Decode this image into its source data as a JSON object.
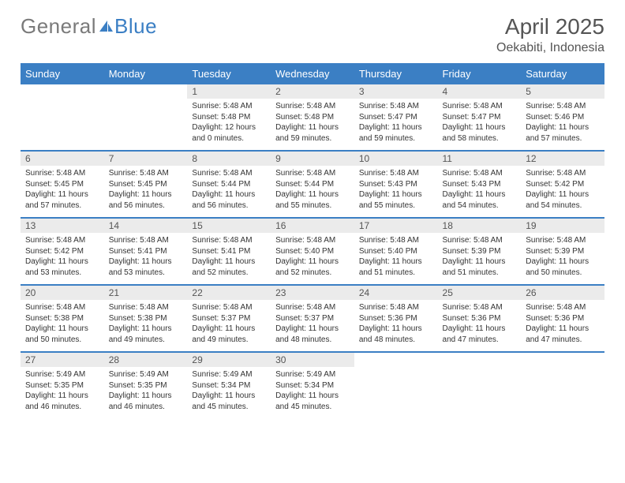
{
  "logo": {
    "text_gray": "General",
    "text_blue": "Blue"
  },
  "header": {
    "month_title": "April 2025",
    "location": "Oekabiti, Indonesia"
  },
  "colors": {
    "header_bg": "#3b7fc4",
    "header_text": "#ffffff",
    "daynum_bg": "#ebebeb",
    "row_border": "#3b7fc4",
    "body_text": "#333333",
    "title_text": "#555555",
    "logo_gray": "#7a7a7a",
    "logo_blue": "#3b7fc4"
  },
  "day_headers": [
    "Sunday",
    "Monday",
    "Tuesday",
    "Wednesday",
    "Thursday",
    "Friday",
    "Saturday"
  ],
  "weeks": [
    [
      {
        "empty": true
      },
      {
        "empty": true
      },
      {
        "n": "1",
        "sr": "Sunrise: 5:48 AM",
        "ss": "Sunset: 5:48 PM",
        "dl": "Daylight: 12 hours and 0 minutes."
      },
      {
        "n": "2",
        "sr": "Sunrise: 5:48 AM",
        "ss": "Sunset: 5:48 PM",
        "dl": "Daylight: 11 hours and 59 minutes."
      },
      {
        "n": "3",
        "sr": "Sunrise: 5:48 AM",
        "ss": "Sunset: 5:47 PM",
        "dl": "Daylight: 11 hours and 59 minutes."
      },
      {
        "n": "4",
        "sr": "Sunrise: 5:48 AM",
        "ss": "Sunset: 5:47 PM",
        "dl": "Daylight: 11 hours and 58 minutes."
      },
      {
        "n": "5",
        "sr": "Sunrise: 5:48 AM",
        "ss": "Sunset: 5:46 PM",
        "dl": "Daylight: 11 hours and 57 minutes."
      }
    ],
    [
      {
        "n": "6",
        "sr": "Sunrise: 5:48 AM",
        "ss": "Sunset: 5:45 PM",
        "dl": "Daylight: 11 hours and 57 minutes."
      },
      {
        "n": "7",
        "sr": "Sunrise: 5:48 AM",
        "ss": "Sunset: 5:45 PM",
        "dl": "Daylight: 11 hours and 56 minutes."
      },
      {
        "n": "8",
        "sr": "Sunrise: 5:48 AM",
        "ss": "Sunset: 5:44 PM",
        "dl": "Daylight: 11 hours and 56 minutes."
      },
      {
        "n": "9",
        "sr": "Sunrise: 5:48 AM",
        "ss": "Sunset: 5:44 PM",
        "dl": "Daylight: 11 hours and 55 minutes."
      },
      {
        "n": "10",
        "sr": "Sunrise: 5:48 AM",
        "ss": "Sunset: 5:43 PM",
        "dl": "Daylight: 11 hours and 55 minutes."
      },
      {
        "n": "11",
        "sr": "Sunrise: 5:48 AM",
        "ss": "Sunset: 5:43 PM",
        "dl": "Daylight: 11 hours and 54 minutes."
      },
      {
        "n": "12",
        "sr": "Sunrise: 5:48 AM",
        "ss": "Sunset: 5:42 PM",
        "dl": "Daylight: 11 hours and 54 minutes."
      }
    ],
    [
      {
        "n": "13",
        "sr": "Sunrise: 5:48 AM",
        "ss": "Sunset: 5:42 PM",
        "dl": "Daylight: 11 hours and 53 minutes."
      },
      {
        "n": "14",
        "sr": "Sunrise: 5:48 AM",
        "ss": "Sunset: 5:41 PM",
        "dl": "Daylight: 11 hours and 53 minutes."
      },
      {
        "n": "15",
        "sr": "Sunrise: 5:48 AM",
        "ss": "Sunset: 5:41 PM",
        "dl": "Daylight: 11 hours and 52 minutes."
      },
      {
        "n": "16",
        "sr": "Sunrise: 5:48 AM",
        "ss": "Sunset: 5:40 PM",
        "dl": "Daylight: 11 hours and 52 minutes."
      },
      {
        "n": "17",
        "sr": "Sunrise: 5:48 AM",
        "ss": "Sunset: 5:40 PM",
        "dl": "Daylight: 11 hours and 51 minutes."
      },
      {
        "n": "18",
        "sr": "Sunrise: 5:48 AM",
        "ss": "Sunset: 5:39 PM",
        "dl": "Daylight: 11 hours and 51 minutes."
      },
      {
        "n": "19",
        "sr": "Sunrise: 5:48 AM",
        "ss": "Sunset: 5:39 PM",
        "dl": "Daylight: 11 hours and 50 minutes."
      }
    ],
    [
      {
        "n": "20",
        "sr": "Sunrise: 5:48 AM",
        "ss": "Sunset: 5:38 PM",
        "dl": "Daylight: 11 hours and 50 minutes."
      },
      {
        "n": "21",
        "sr": "Sunrise: 5:48 AM",
        "ss": "Sunset: 5:38 PM",
        "dl": "Daylight: 11 hours and 49 minutes."
      },
      {
        "n": "22",
        "sr": "Sunrise: 5:48 AM",
        "ss": "Sunset: 5:37 PM",
        "dl": "Daylight: 11 hours and 49 minutes."
      },
      {
        "n": "23",
        "sr": "Sunrise: 5:48 AM",
        "ss": "Sunset: 5:37 PM",
        "dl": "Daylight: 11 hours and 48 minutes."
      },
      {
        "n": "24",
        "sr": "Sunrise: 5:48 AM",
        "ss": "Sunset: 5:36 PM",
        "dl": "Daylight: 11 hours and 48 minutes."
      },
      {
        "n": "25",
        "sr": "Sunrise: 5:48 AM",
        "ss": "Sunset: 5:36 PM",
        "dl": "Daylight: 11 hours and 47 minutes."
      },
      {
        "n": "26",
        "sr": "Sunrise: 5:48 AM",
        "ss": "Sunset: 5:36 PM",
        "dl": "Daylight: 11 hours and 47 minutes."
      }
    ],
    [
      {
        "n": "27",
        "sr": "Sunrise: 5:49 AM",
        "ss": "Sunset: 5:35 PM",
        "dl": "Daylight: 11 hours and 46 minutes."
      },
      {
        "n": "28",
        "sr": "Sunrise: 5:49 AM",
        "ss": "Sunset: 5:35 PM",
        "dl": "Daylight: 11 hours and 46 minutes."
      },
      {
        "n": "29",
        "sr": "Sunrise: 5:49 AM",
        "ss": "Sunset: 5:34 PM",
        "dl": "Daylight: 11 hours and 45 minutes."
      },
      {
        "n": "30",
        "sr": "Sunrise: 5:49 AM",
        "ss": "Sunset: 5:34 PM",
        "dl": "Daylight: 11 hours and 45 minutes."
      },
      {
        "empty": true
      },
      {
        "empty": true
      },
      {
        "empty": true
      }
    ]
  ]
}
